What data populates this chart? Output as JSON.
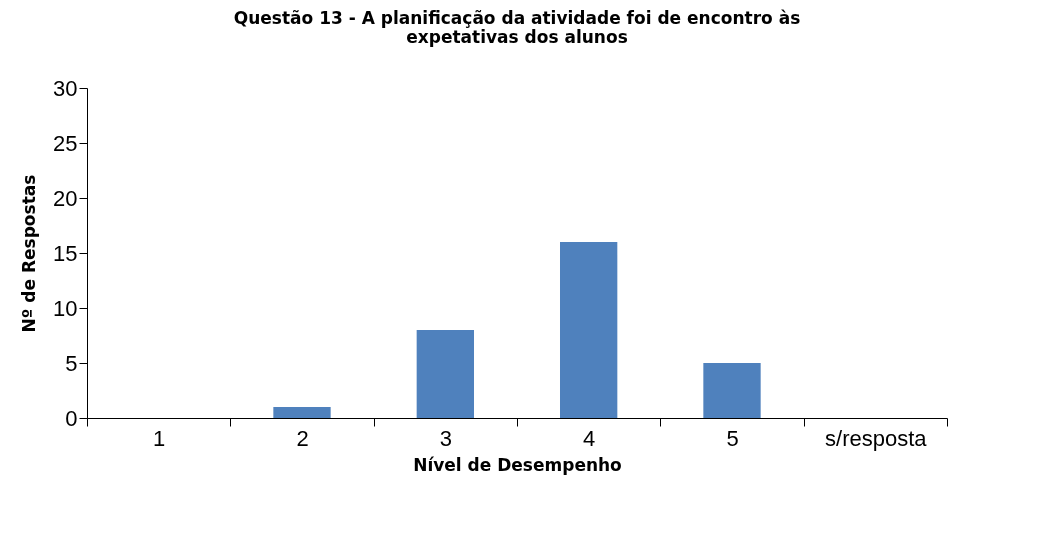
{
  "chart_data": {
    "type": "bar",
    "title": "Questão 13 - A planificação da atividade foi de encontro às expetativas dos alunos",
    "xlabel": "Nível de Desempenho",
    "ylabel": "Nº de Respostas",
    "categories": [
      "1",
      "2",
      "3",
      "4",
      "5",
      "s/resposta"
    ],
    "values": [
      0,
      1,
      8,
      16,
      5,
      0
    ],
    "color": "#4f81bd",
    "ylim": [
      0,
      30
    ],
    "yticks": [
      0,
      5,
      10,
      15,
      20,
      25,
      30
    ],
    "grid": false
  }
}
